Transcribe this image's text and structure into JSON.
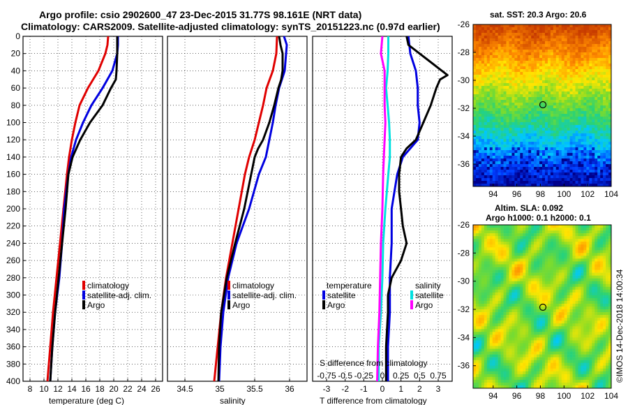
{
  "header": {
    "line1": "Argo profile: csio 2902600_47 23-Dec-2015 31.77S 98.161E (NRT data)",
    "line2": "Climatology: CARS2009. Satellite-adjusted climatology: synTS_20151223.nc (0.97d earlier)"
  },
  "colors": {
    "climatology": "#e00000",
    "satellite": "#0000e0",
    "argo": "#000000",
    "cyan": "#00e0e0",
    "magenta": "#ff00ff"
  },
  "chart_data": [
    {
      "type": "line",
      "name": "temperature",
      "xlabel": "temperature (deg C)",
      "ylim": [
        0,
        400
      ],
      "xlim": [
        7,
        27
      ],
      "x_ticks": [
        8,
        10,
        12,
        14,
        16,
        18,
        20,
        22,
        24,
        26
      ],
      "y_ticks": [
        0,
        20,
        40,
        60,
        80,
        100,
        120,
        140,
        160,
        180,
        200,
        220,
        240,
        260,
        280,
        300,
        320,
        340,
        360,
        380,
        400
      ],
      "legend": [
        "climatology",
        "satellite-adj. clim.",
        "Argo"
      ],
      "series": [
        {
          "name": "climatology",
          "depth": [
            0,
            10,
            20,
            40,
            60,
            80,
            100,
            120,
            140,
            160,
            200,
            240,
            280,
            320,
            360,
            400
          ],
          "values": [
            19.2,
            19.1,
            18.8,
            17.8,
            16.3,
            15.1,
            14.5,
            14.0,
            13.6,
            13.3,
            12.8,
            12.3,
            11.8,
            11.3,
            10.9,
            10.5
          ]
        },
        {
          "name": "satellite-adj. clim.",
          "depth": [
            0,
            10,
            20,
            40,
            60,
            80,
            100,
            120,
            140,
            160,
            200,
            240,
            280,
            320,
            360,
            400
          ],
          "values": [
            20.6,
            20.6,
            20.5,
            19.8,
            18.4,
            16.8,
            15.6,
            14.6,
            13.9,
            13.5,
            12.9,
            12.6,
            12.2,
            11.6,
            11.2,
            10.9
          ]
        },
        {
          "name": "Argo",
          "depth": [
            0,
            10,
            20,
            40,
            50,
            60,
            80,
            100,
            120,
            140,
            160,
            200,
            240,
            280,
            320,
            360,
            400
          ],
          "values": [
            20.5,
            20.5,
            20.5,
            20.4,
            20.3,
            19.6,
            18.4,
            16.6,
            15.2,
            14.1,
            13.5,
            13.1,
            12.6,
            12.1,
            11.6,
            11.2,
            10.9
          ]
        }
      ]
    },
    {
      "type": "line",
      "name": "salinity",
      "xlabel": "salinity",
      "ylim": [
        0,
        400
      ],
      "xlim": [
        34.25,
        36.25
      ],
      "x_ticks": [
        "34.5",
        "35",
        "35.5",
        "36"
      ],
      "legend": [
        "climatology",
        "satellite-adj. clim.",
        "Argo"
      ],
      "series": [
        {
          "name": "climatology",
          "depth": [
            0,
            20,
            40,
            60,
            80,
            100,
            120,
            140,
            160,
            200,
            240,
            280,
            320,
            360,
            400
          ],
          "values": [
            35.82,
            35.81,
            35.76,
            35.67,
            35.62,
            35.56,
            35.5,
            35.42,
            35.36,
            35.27,
            35.18,
            35.09,
            35.02,
            34.97,
            34.92
          ]
        },
        {
          "name": "satellite-adj. clim.",
          "depth": [
            0,
            10,
            20,
            40,
            60,
            80,
            100,
            120,
            140,
            160,
            200,
            240,
            280,
            320,
            360,
            400
          ],
          "values": [
            35.92,
            35.96,
            35.95,
            35.93,
            35.85,
            35.8,
            35.76,
            35.71,
            35.66,
            35.56,
            35.42,
            35.24,
            35.12,
            35.05,
            35.01,
            34.99
          ]
        },
        {
          "name": "Argo",
          "depth": [
            0,
            10,
            20,
            40,
            50,
            60,
            80,
            100,
            120,
            130,
            140,
            160,
            200,
            240,
            280,
            320,
            360,
            400
          ],
          "values": [
            35.85,
            35.87,
            35.9,
            35.9,
            35.88,
            35.84,
            35.78,
            35.71,
            35.62,
            35.55,
            35.5,
            35.45,
            35.35,
            35.22,
            35.1,
            35.02,
            34.99,
            34.98
          ]
        }
      ]
    },
    {
      "type": "line",
      "name": "difference",
      "xlabel": "T difference from climatology",
      "xlabel_top": "S difference from climatology",
      "ylim": [
        0,
        400
      ],
      "xlim": [
        -3.75,
        3.75
      ],
      "x_ticks": [
        "-3",
        "-2",
        "-1",
        "0",
        "1",
        "2",
        "3"
      ],
      "s_ticks": [
        "-0.75",
        "-0.5",
        "-0.25",
        "0",
        "0.25",
        "0.5",
        "0.75"
      ],
      "legend_temperature": {
        "title": "temperature",
        "items": [
          "satellite",
          "Argo"
        ]
      },
      "legend_salinity": {
        "title": "salinity",
        "items": [
          "satellite",
          "Argo"
        ]
      },
      "series": [
        {
          "name": "T satellite",
          "depth": [
            0,
            20,
            40,
            60,
            80,
            100,
            120,
            140,
            160,
            200,
            240,
            280,
            320,
            360,
            400
          ],
          "values": [
            1.4,
            1.5,
            1.8,
            1.9,
            1.9,
            2.0,
            1.9,
            1.1,
            0.8,
            0.5,
            0.5,
            0.4,
            0.4,
            0.3,
            0.3
          ]
        },
        {
          "name": "T Argo",
          "depth": [
            0,
            10,
            20,
            30,
            40,
            45,
            50,
            60,
            80,
            100,
            120,
            130,
            140,
            160,
            180,
            200,
            220,
            240,
            260,
            280,
            300,
            320,
            360,
            400
          ],
          "values": [
            1.3,
            1.4,
            2.0,
            2.6,
            3.2,
            3.5,
            3.1,
            2.9,
            2.6,
            2.2,
            1.8,
            1.3,
            1.0,
            0.9,
            0.9,
            1.0,
            1.1,
            1.3,
            1.0,
            0.5,
            0.3,
            0.3,
            0.2,
            0.2
          ]
        },
        {
          "name": "S satellite",
          "depth": [
            0,
            20,
            40,
            60,
            80,
            100,
            120,
            140,
            160,
            200,
            240,
            280,
            320,
            360,
            400
          ],
          "values": [
            0.08,
            0.08,
            0.07,
            0.05,
            0.07,
            0.09,
            0.1,
            0.1,
            0.08,
            0.04,
            0.01,
            0.0,
            -0.02,
            -0.05,
            -0.05
          ]
        },
        {
          "name": "S Argo",
          "depth": [
            0,
            20,
            40,
            60,
            80,
            100,
            120,
            140,
            160,
            200,
            240,
            280,
            320,
            360,
            400
          ],
          "values": [
            0.0,
            -0.02,
            0.03,
            0.03,
            0.03,
            0.04,
            0.03,
            0.02,
            0.01,
            0.0,
            -0.02,
            -0.03,
            -0.04,
            -0.06,
            -0.07
          ]
        }
      ]
    }
  ],
  "maps": {
    "sst_title": "sat. SST: 20.3 Argo: 20.6",
    "sla_title1": "Altim. SLA: 0.092",
    "sla_title2": "Argo h1000: 0.1 h2000: 0.1",
    "lat_ticks": [
      "-26",
      "-28",
      "-30",
      "-32",
      "-34",
      "-36"
    ],
    "lon_ticks": [
      "94",
      "96",
      "98",
      "100",
      "102",
      "104"
    ]
  },
  "credit": "©IMOS 14-Dec-2018 14:00:34"
}
